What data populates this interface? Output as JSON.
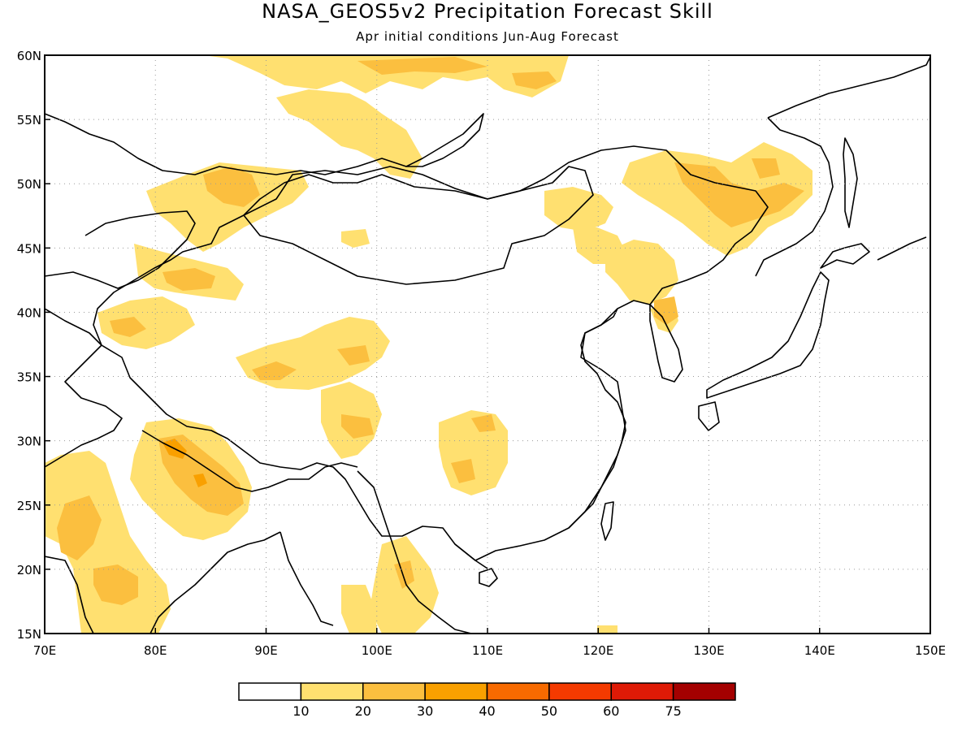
{
  "chart_data": {
    "type": "heatmap",
    "title": "NASA_GEOS5v2 Precipitation Forecast Skill",
    "subtitle": "Apr initial conditions  Jun-Aug Forecast",
    "x_range": [
      70,
      150
    ],
    "y_range": [
      15,
      60
    ],
    "x_ticks": [
      "70E",
      "80E",
      "90E",
      "100E",
      "110E",
      "120E",
      "130E",
      "140E",
      "150E"
    ],
    "y_ticks": [
      "15N",
      "20N",
      "25N",
      "30N",
      "35N",
      "40N",
      "45N",
      "50N",
      "55N",
      "60N"
    ],
    "grid": true,
    "legend": {
      "placement": "bottom",
      "colors": [
        "#ffffff",
        "#ffe070",
        "#fbbf3f",
        "#f9a000",
        "#f76a00",
        "#f43a00",
        "#de1a06",
        "#a40000"
      ],
      "labels": [
        "10",
        "20",
        "30",
        "40",
        "50",
        "60",
        "75"
      ]
    },
    "regions": [
      {
        "level": "10-20",
        "lon": 76,
        "lat": 59.8
      },
      {
        "level": "10-20",
        "lon": 96,
        "lat": 55
      },
      {
        "level": "10-20",
        "lon": 101,
        "lat": 53
      },
      {
        "level": "10-20",
        "lon": 110,
        "lat": 58
      },
      {
        "level": "20-30",
        "lon": 112,
        "lat": 59
      },
      {
        "level": "20-30",
        "lon": 117,
        "lat": 57.5
      },
      {
        "level": "10-20",
        "lon": 87,
        "lat": 47
      },
      {
        "level": "20-30",
        "lon": 86,
        "lat": 49.5
      },
      {
        "level": "10-20",
        "lon": 84,
        "lat": 42.5
      },
      {
        "level": "20-30",
        "lon": 84,
        "lat": 43
      },
      {
        "level": "10-20",
        "lon": 77,
        "lat": 39
      },
      {
        "level": "20-30",
        "lon": 77,
        "lat": 39
      },
      {
        "level": "10-20",
        "lon": 98,
        "lat": 36
      },
      {
        "level": "20-30",
        "lon": 98,
        "lat": 36.5
      },
      {
        "level": "10-20",
        "lon": 100,
        "lat": 30.5
      },
      {
        "level": "20-30",
        "lon": 100,
        "lat": 31
      },
      {
        "level": "10-20",
        "lon": 109,
        "lat": 28
      },
      {
        "level": "20-30",
        "lon": 108,
        "lat": 26
      },
      {
        "level": "10-20",
        "lon": 85,
        "lat": 26
      },
      {
        "level": "20-30",
        "lon": 84,
        "lat": 27.5
      },
      {
        "level": "30-40",
        "lon": 83,
        "lat": 27
      },
      {
        "level": "10-20",
        "lon": 75,
        "lat": 20
      },
      {
        "level": "20-30",
        "lon": 76,
        "lat": 19
      },
      {
        "level": "10-20",
        "lon": 101,
        "lat": 18
      },
      {
        "level": "10-20",
        "lon": 122,
        "lat": 43
      },
      {
        "level": "20-30",
        "lon": 122.5,
        "lat": 40.3
      },
      {
        "level": "10-20",
        "lon": 130,
        "lat": 49
      },
      {
        "level": "20-30",
        "lon": 132,
        "lat": 48
      },
      {
        "level": "10-20",
        "lon": 119,
        "lat": 47
      }
    ]
  }
}
